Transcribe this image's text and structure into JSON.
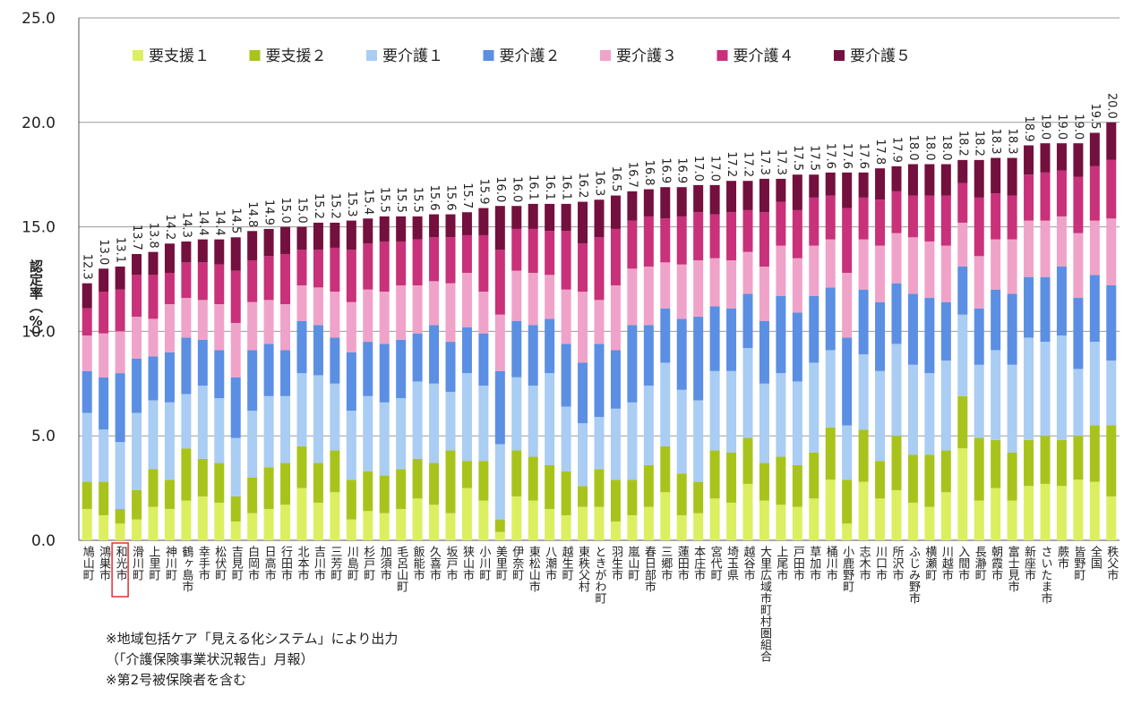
{
  "chart_data": {
    "type": "stacked_bar",
    "ylabel": "認定率（%）",
    "ylim": [
      0,
      25
    ],
    "yticks": [
      {
        "value": 0,
        "label": "0.0"
      },
      {
        "value": 5,
        "label": "5.0"
      },
      {
        "value": 10,
        "label": "10.0"
      },
      {
        "value": 15,
        "label": "15.0"
      },
      {
        "value": 20,
        "label": "20.0"
      },
      {
        "value": 25,
        "label": "25.0"
      }
    ],
    "grid": true,
    "legend": "top",
    "categories": [
      "鳩山町",
      "鴻巣市",
      "和光市",
      "滑川町",
      "上里町",
      "神川町",
      "鶴ヶ島市",
      "幸手市",
      "松伏町",
      "吉見町",
      "白岡市",
      "日高市",
      "行田市",
      "北本市",
      "吉川市",
      "三芳町",
      "川島町",
      "杉戸町",
      "加須市",
      "毛呂山町",
      "飯能市",
      "久喜市",
      "坂戸市",
      "狭山市",
      "小川町",
      "美里町",
      "伊奈町",
      "東松山市",
      "八潮市",
      "越生町",
      "東秩父村",
      "ときがわ町",
      "羽生市",
      "嵐山町",
      "春日部市",
      "三郷市",
      "蓮田市",
      "本庄市",
      "宮代町",
      "埼玉県",
      "越谷市",
      "大里広域市町村圏組合",
      "上尾市",
      "戸田市",
      "草加市",
      "桶川市",
      "小鹿野町",
      "志木市",
      "川口市",
      "所沢市",
      "ふじみ野市",
      "横瀬町",
      "川越市",
      "入間市",
      "長瀞町",
      "朝霞市",
      "富士見市",
      "新座市",
      "さいたま市",
      "蕨市",
      "皆野町",
      "全国",
      "秩父市"
    ],
    "series": [
      {
        "name": "要支援１",
        "color": "#dcef60",
        "values": [
          1.5,
          1.2,
          0.8,
          1.0,
          1.6,
          1.5,
          1.9,
          2.1,
          1.8,
          0.9,
          1.3,
          1.5,
          1.7,
          2.5,
          1.8,
          2.3,
          1.0,
          1.4,
          1.3,
          1.5,
          2.0,
          1.7,
          1.3,
          2.5,
          1.9,
          0.4,
          2.1,
          1.9,
          1.5,
          1.2,
          1.6,
          1.6,
          0.9,
          1.2,
          1.6,
          2.3,
          1.2,
          1.3,
          2.0,
          1.8,
          2.7,
          1.9,
          1.7,
          1.6,
          2.0,
          2.9,
          0.8,
          2.8,
          2.0,
          2.4,
          1.8,
          1.6,
          2.3,
          4.4,
          1.9,
          2.5,
          1.9,
          2.6,
          2.7,
          2.6,
          2.9,
          2.8,
          2.1
        ]
      },
      {
        "name": "要支援２",
        "color": "#a8c41c",
        "values": [
          1.3,
          1.6,
          0.7,
          1.4,
          1.8,
          1.4,
          2.5,
          1.8,
          1.9,
          1.2,
          1.7,
          2.0,
          2.0,
          2.0,
          1.9,
          2.0,
          1.9,
          1.9,
          1.8,
          1.9,
          1.9,
          2.0,
          3.0,
          1.3,
          1.9,
          0.6,
          2.2,
          2.1,
          2.1,
          2.1,
          1.0,
          1.8,
          2.0,
          1.7,
          2.0,
          2.2,
          2.0,
          1.5,
          2.3,
          2.4,
          2.2,
          1.8,
          2.3,
          2.0,
          2.2,
          2.5,
          2.1,
          2.5,
          1.8,
          2.6,
          2.3,
          2.5,
          2.0,
          2.5,
          3.0,
          2.3,
          2.3,
          2.2,
          2.3,
          2.2,
          2.1,
          2.7,
          3.4
        ]
      },
      {
        "name": "要介護１",
        "color": "#a9cdf3",
        "values": [
          3.3,
          2.5,
          3.2,
          3.7,
          3.3,
          3.7,
          2.6,
          3.5,
          3.1,
          2.8,
          3.2,
          3.4,
          3.2,
          3.5,
          4.2,
          3.2,
          3.3,
          3.6,
          3.5,
          3.4,
          3.7,
          3.8,
          2.8,
          4.2,
          3.6,
          3.6,
          3.5,
          3.4,
          4.4,
          3.1,
          3.0,
          2.5,
          3.4,
          3.7,
          3.8,
          4.0,
          4.0,
          3.9,
          3.8,
          3.9,
          4.3,
          3.8,
          4.0,
          4.0,
          4.3,
          3.7,
          2.6,
          3.6,
          4.3,
          4.4,
          4.3,
          3.9,
          4.3,
          3.9,
          3.5,
          4.3,
          4.2,
          4.9,
          4.5,
          5.0,
          3.2,
          4.0,
          3.1
        ]
      },
      {
        "name": "要介護２",
        "color": "#5b8fe3",
        "values": [
          2.0,
          2.5,
          3.3,
          2.6,
          2.1,
          2.4,
          2.7,
          2.2,
          2.3,
          2.9,
          2.9,
          2.5,
          2.2,
          2.5,
          2.4,
          2.2,
          2.8,
          2.6,
          2.8,
          2.8,
          2.3,
          2.8,
          2.4,
          2.2,
          2.5,
          3.5,
          2.7,
          2.9,
          2.6,
          3.0,
          2.9,
          3.5,
          2.8,
          3.7,
          2.9,
          2.6,
          3.4,
          4.0,
          3.1,
          3.0,
          2.6,
          3.0,
          3.7,
          3.3,
          3.2,
          3.0,
          4.2,
          3.1,
          3.3,
          2.9,
          3.4,
          3.6,
          2.8,
          2.3,
          2.7,
          2.9,
          3.4,
          2.9,
          3.1,
          3.3,
          3.4,
          3.2,
          3.6
        ]
      },
      {
        "name": "要介護３",
        "color": "#f0a3c9",
        "values": [
          1.7,
          2.1,
          2.0,
          2.0,
          1.8,
          2.3,
          1.9,
          1.9,
          2.2,
          2.6,
          2.3,
          2.1,
          2.2,
          1.7,
          1.8,
          2.2,
          2.4,
          2.5,
          2.5,
          2.6,
          2.3,
          2.1,
          2.8,
          2.6,
          2.0,
          2.7,
          2.4,
          2.5,
          2.1,
          2.6,
          3.4,
          2.1,
          3.1,
          2.7,
          2.8,
          2.2,
          2.6,
          2.7,
          2.3,
          2.3,
          2.0,
          2.6,
          2.4,
          2.6,
          2.4,
          2.3,
          3.1,
          2.4,
          2.7,
          2.4,
          2.7,
          2.7,
          2.7,
          2.1,
          2.5,
          2.4,
          2.6,
          2.7,
          2.7,
          2.4,
          3.1,
          2.6,
          3.2
        ]
      },
      {
        "name": "要介護４",
        "color": "#c9317a",
        "values": [
          1.3,
          2.0,
          2.0,
          2.0,
          2.1,
          1.5,
          1.7,
          1.8,
          1.9,
          2.5,
          2.0,
          2.1,
          2.4,
          1.7,
          1.8,
          2.1,
          2.5,
          2.2,
          2.4,
          2.1,
          2.2,
          2.1,
          2.2,
          1.8,
          2.7,
          3.1,
          2.0,
          2.1,
          2.1,
          2.8,
          2.3,
          3.0,
          2.7,
          2.3,
          2.4,
          2.1,
          2.3,
          2.3,
          2.1,
          2.3,
          2.0,
          2.6,
          2.1,
          2.3,
          2.3,
          2.1,
          3.1,
          2.0,
          2.2,
          2.0,
          2.0,
          2.2,
          2.4,
          1.9,
          2.8,
          2.2,
          2.1,
          2.2,
          2.3,
          2.2,
          2.7,
          2.6,
          2.8
        ]
      },
      {
        "name": "要介護５",
        "color": "#74103d",
        "values": [
          1.2,
          1.1,
          1.1,
          1.0,
          1.1,
          1.4,
          1.0,
          1.1,
          1.2,
          1.6,
          1.4,
          1.3,
          1.3,
          1.1,
          1.3,
          1.2,
          1.4,
          1.2,
          1.2,
          1.2,
          1.1,
          1.1,
          1.1,
          1.1,
          1.3,
          2.1,
          1.1,
          1.2,
          1.3,
          1.3,
          2.0,
          1.8,
          1.6,
          1.4,
          1.3,
          1.5,
          1.4,
          1.3,
          1.4,
          1.5,
          1.4,
          1.6,
          1.1,
          1.7,
          1.1,
          1.1,
          1.7,
          1.2,
          1.5,
          1.2,
          1.5,
          1.5,
          1.5,
          1.1,
          1.8,
          1.7,
          1.8,
          1.4,
          1.4,
          1.3,
          1.6,
          1.6,
          1.8
        ]
      }
    ],
    "total_labels": [
      "12.3",
      "13.0",
      "13.1",
      "13.7",
      "13.8",
      "14.2",
      "14.3",
      "14.4",
      "14.4",
      "14.5",
      "14.8",
      "14.9",
      "15.0",
      "15.0",
      "15.2",
      "15.2",
      "15.3",
      "15.4",
      "15.5",
      "15.5",
      "15.5",
      "15.6",
      "15.6",
      "15.7",
      "15.9",
      "16.0",
      "16.0",
      "16.1",
      "16.1",
      "16.1",
      "16.2",
      "16.3",
      "16.5",
      "16.7",
      "16.8",
      "16.9",
      "16.9",
      "17.0",
      "17.0",
      "17.2",
      "17.2",
      "17.3",
      "17.3",
      "17.5",
      "17.5",
      "17.6",
      "17.6",
      "17.6",
      "17.8",
      "17.9",
      "18.0",
      "18.0",
      "18.0",
      "18.2",
      "18.2",
      "18.3",
      "18.3",
      "18.9",
      "19.0",
      "19.0",
      "19.0",
      "19.5",
      "20.0"
    ],
    "notes": [
      "※地域包括ケア「見える化システム」により出力",
      "（「介護保険事業状況報告」月報）",
      "※第2号被保険者を含む"
    ]
  }
}
